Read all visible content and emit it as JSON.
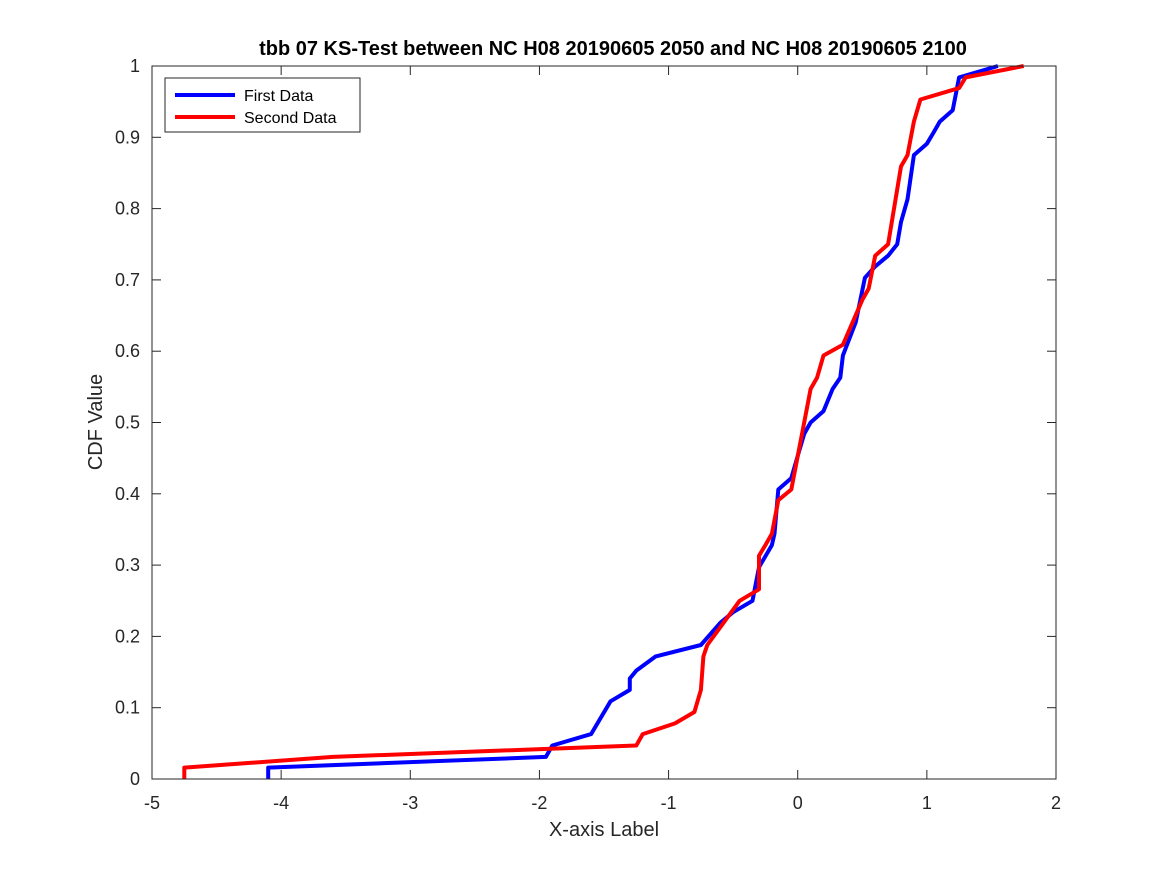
{
  "chart_data": {
    "type": "line",
    "title": "tbb 07 KS-Test between NC H08 20190605 2050 and NC H08 20190605 2100",
    "xlabel": "X-axis Label",
    "ylabel": "CDF Value",
    "xlim": [
      -5,
      2
    ],
    "ylim": [
      0,
      1
    ],
    "xticks": [
      -5,
      -4,
      -3,
      -2,
      -1,
      0,
      1,
      2
    ],
    "xtick_labels": [
      "-5",
      "-4",
      "-3",
      "-2",
      "-1",
      "0",
      "1",
      "2"
    ],
    "yticks": [
      0,
      0.1,
      0.2,
      0.3,
      0.4,
      0.5,
      0.6,
      0.7,
      0.8,
      0.9,
      1
    ],
    "ytick_labels": [
      "0",
      "0.1",
      "0.2",
      "0.3",
      "0.4",
      "0.5",
      "0.6",
      "0.7",
      "0.8",
      "0.9",
      "1"
    ],
    "grid": false,
    "legend_position": "top-left",
    "series": [
      {
        "name": "First Data",
        "color": "#0000ff",
        "points": [
          [
            -4.1,
            0.0
          ],
          [
            -4.1,
            0.016
          ],
          [
            -1.95,
            0.031
          ],
          [
            -1.9,
            0.047
          ],
          [
            -1.6,
            0.063
          ],
          [
            -1.45,
            0.109
          ],
          [
            -1.3,
            0.125
          ],
          [
            -1.3,
            0.141
          ],
          [
            -1.25,
            0.152
          ],
          [
            -1.1,
            0.172
          ],
          [
            -0.75,
            0.188
          ],
          [
            -0.6,
            0.219
          ],
          [
            -0.5,
            0.234
          ],
          [
            -0.35,
            0.25
          ],
          [
            -0.3,
            0.297
          ],
          [
            -0.2,
            0.328
          ],
          [
            -0.18,
            0.344
          ],
          [
            -0.15,
            0.406
          ],
          [
            -0.05,
            0.422
          ],
          [
            0.0,
            0.453
          ],
          [
            0.05,
            0.484
          ],
          [
            0.1,
            0.5
          ],
          [
            0.2,
            0.516
          ],
          [
            0.27,
            0.547
          ],
          [
            0.33,
            0.563
          ],
          [
            0.35,
            0.594
          ],
          [
            0.45,
            0.641
          ],
          [
            0.52,
            0.703
          ],
          [
            0.6,
            0.719
          ],
          [
            0.7,
            0.734
          ],
          [
            0.77,
            0.75
          ],
          [
            0.8,
            0.781
          ],
          [
            0.85,
            0.813
          ],
          [
            0.9,
            0.875
          ],
          [
            1.0,
            0.891
          ],
          [
            1.05,
            0.906
          ],
          [
            1.1,
            0.922
          ],
          [
            1.2,
            0.938
          ],
          [
            1.25,
            0.984
          ],
          [
            1.55,
            1.0
          ]
        ]
      },
      {
        "name": "Second Data",
        "color": "#ff0000",
        "points": [
          [
            -4.75,
            0.0
          ],
          [
            -4.75,
            0.016
          ],
          [
            -3.6,
            0.031
          ],
          [
            -1.25,
            0.047
          ],
          [
            -1.2,
            0.063
          ],
          [
            -0.95,
            0.078
          ],
          [
            -0.8,
            0.094
          ],
          [
            -0.75,
            0.125
          ],
          [
            -0.73,
            0.172
          ],
          [
            -0.7,
            0.188
          ],
          [
            -0.45,
            0.25
          ],
          [
            -0.3,
            0.266
          ],
          [
            -0.3,
            0.313
          ],
          [
            -0.25,
            0.328
          ],
          [
            -0.2,
            0.344
          ],
          [
            -0.15,
            0.391
          ],
          [
            -0.05,
            0.406
          ],
          [
            0.05,
            0.5
          ],
          [
            0.1,
            0.547
          ],
          [
            0.15,
            0.563
          ],
          [
            0.2,
            0.594
          ],
          [
            0.35,
            0.609
          ],
          [
            0.5,
            0.672
          ],
          [
            0.55,
            0.688
          ],
          [
            0.6,
            0.734
          ],
          [
            0.7,
            0.75
          ],
          [
            0.8,
            0.859
          ],
          [
            0.85,
            0.875
          ],
          [
            0.9,
            0.922
          ],
          [
            0.95,
            0.953
          ],
          [
            1.25,
            0.969
          ],
          [
            1.3,
            0.984
          ],
          [
            1.75,
            1.0
          ]
        ]
      }
    ]
  }
}
